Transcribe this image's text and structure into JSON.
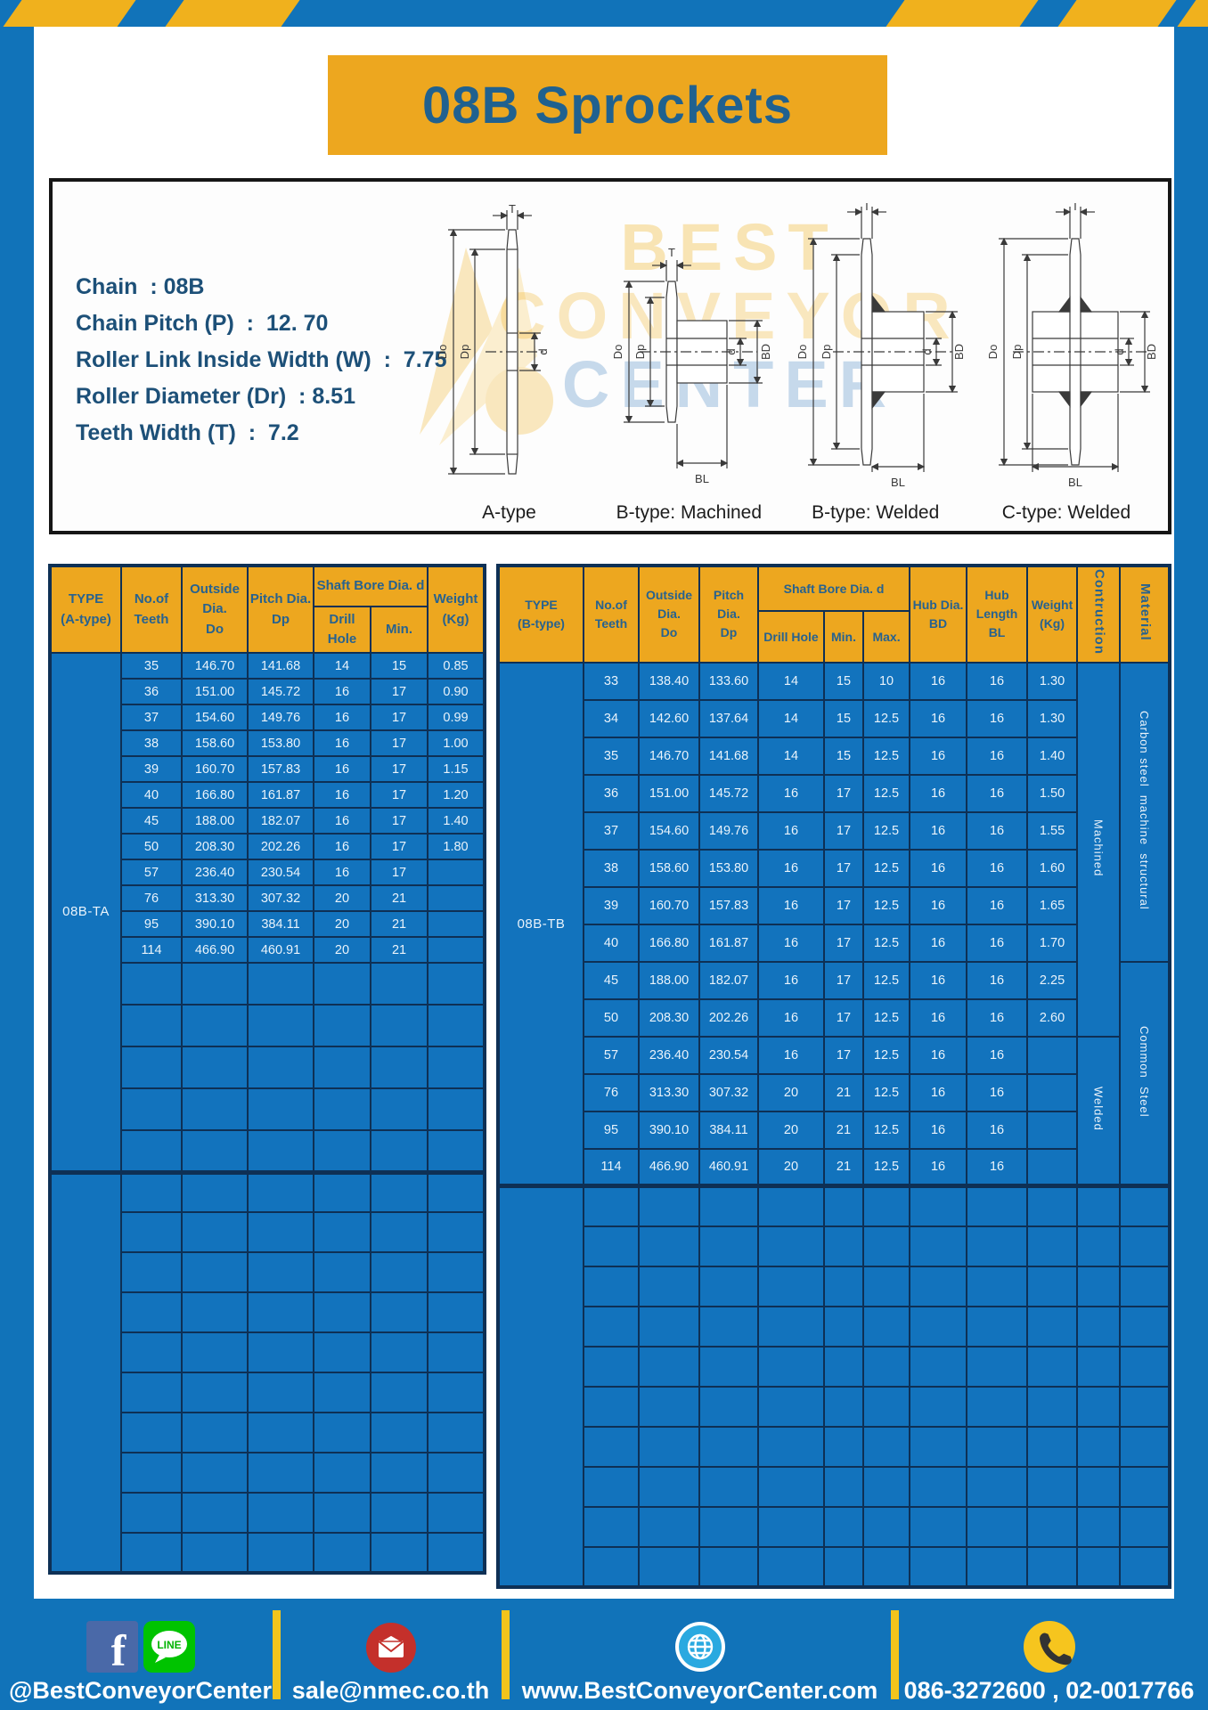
{
  "title": "08B Sprockets",
  "specs": {
    "lines": [
      "Chain  : 08B",
      "Chain Pitch (P)  :  12. 70",
      "Roller Link Inside Width (W)  :  7.75",
      "Roller Diameter (Dr)  : 8.51",
      "Teeth Width (T)  :  7.2"
    ]
  },
  "watermark": {
    "line1": "BEST",
    "line2": "CONVEYOR",
    "line3": "CENTER"
  },
  "diagrams": {
    "captions": [
      "A-type",
      "B-type: Machined",
      "B-type: Welded",
      "C-type: Welded"
    ],
    "dim_labels": {
      "t": "T",
      "do": "Do",
      "dp": "Dp",
      "d": "d",
      "bd": "BD",
      "bl": "BL"
    }
  },
  "table_a": {
    "headers": {
      "type": "TYPE\n(A-type)",
      "teeth": "No.of\nTeeth",
      "outside": "Outside\nDia.\nDo",
      "pitch": "Pitch Dia.\nDp",
      "shaft_bore": "Shaft Bore Dia. d",
      "drill_hole": "Drill Hole",
      "min": "Min.",
      "weight": "Weight\n(Kg)"
    },
    "type_label": "08B-TA",
    "rows": [
      [
        "35",
        "146.70",
        "141.68",
        "14",
        "15",
        "0.85"
      ],
      [
        "36",
        "151.00",
        "145.72",
        "16",
        "17",
        "0.90"
      ],
      [
        "37",
        "154.60",
        "149.76",
        "16",
        "17",
        "0.99"
      ],
      [
        "38",
        "158.60",
        "153.80",
        "16",
        "17",
        "1.00"
      ],
      [
        "39",
        "160.70",
        "157.83",
        "16",
        "17",
        "1.15"
      ],
      [
        "40",
        "166.80",
        "161.87",
        "16",
        "17",
        "1.20"
      ],
      [
        "45",
        "188.00",
        "182.07",
        "16",
        "17",
        "1.40"
      ],
      [
        "50",
        "208.30",
        "202.26",
        "16",
        "17",
        "1.80"
      ],
      [
        "57",
        "236.40",
        "230.54",
        "16",
        "17",
        ""
      ],
      [
        "76",
        "313.30",
        "307.32",
        "20",
        "21",
        ""
      ],
      [
        "95",
        "390.10",
        "384.11",
        "20",
        "21",
        ""
      ],
      [
        "114",
        "466.90",
        "460.91",
        "20",
        "21",
        ""
      ]
    ],
    "empty_rows_upper": 5,
    "empty_rows_lower": 10
  },
  "table_b": {
    "headers": {
      "type": "TYPE\n(B-type)",
      "teeth": "No.of\nTeeth",
      "outside": "Outside\nDia.\nDo",
      "pitch": "Pitch Dia.\nDp",
      "shaft_bore": "Shaft Bore Dia. d",
      "drill_hole": "Drill Hole",
      "min": "Min.",
      "max": "Max.",
      "hub_dia": "Hub Dia.\nBD",
      "hub_length": "Hub\nLength\nBL",
      "weight": "Weight\n(Kg)",
      "construction": "Contruction",
      "material": "Material"
    },
    "type_label": "08B-TB",
    "rows": [
      [
        "33",
        "138.40",
        "133.60",
        "14",
        "15",
        "10",
        "16",
        "16",
        "1.30"
      ],
      [
        "34",
        "142.60",
        "137.64",
        "14",
        "15",
        "12.5",
        "16",
        "16",
        "1.30"
      ],
      [
        "35",
        "146.70",
        "141.68",
        "14",
        "15",
        "12.5",
        "16",
        "16",
        "1.40"
      ],
      [
        "36",
        "151.00",
        "145.72",
        "16",
        "17",
        "12.5",
        "16",
        "16",
        "1.50"
      ],
      [
        "37",
        "154.60",
        "149.76",
        "16",
        "17",
        "12.5",
        "16",
        "16",
        "1.55"
      ],
      [
        "38",
        "158.60",
        "153.80",
        "16",
        "17",
        "12.5",
        "16",
        "16",
        "1.60"
      ],
      [
        "39",
        "160.70",
        "157.83",
        "16",
        "17",
        "12.5",
        "16",
        "16",
        "1.65"
      ],
      [
        "40",
        "166.80",
        "161.87",
        "16",
        "17",
        "12.5",
        "16",
        "16",
        "1.70"
      ],
      [
        "45",
        "188.00",
        "182.07",
        "16",
        "17",
        "12.5",
        "16",
        "16",
        "2.25"
      ],
      [
        "50",
        "208.30",
        "202.26",
        "16",
        "17",
        "12.5",
        "16",
        "16",
        "2.60"
      ],
      [
        "57",
        "236.40",
        "230.54",
        "16",
        "17",
        "12.5",
        "16",
        "16",
        ""
      ],
      [
        "76",
        "313.30",
        "307.32",
        "20",
        "21",
        "12.5",
        "16",
        "16",
        ""
      ],
      [
        "95",
        "390.10",
        "384.11",
        "20",
        "21",
        "12.5",
        "16",
        "16",
        ""
      ],
      [
        "114",
        "466.90",
        "460.91",
        "20",
        "21",
        "12.5",
        "16",
        "16",
        ""
      ]
    ],
    "construction_groups": [
      {
        "label": "Machined",
        "rows": 10
      },
      {
        "label": "Welded",
        "rows": 4
      }
    ],
    "material_groups": [
      {
        "label": "Carbon steel  machine  structural",
        "rows": 8
      },
      {
        "label": "Common  Steel",
        "rows": 6
      }
    ],
    "empty_rows_lower": 10
  },
  "footer": {
    "social_label": "@BestConveyorCenter",
    "line_badge": "LINE",
    "email": "sale@nmec.co.th",
    "website": "www.BestConveyorCenter.com",
    "phone": "086-3272600 , 02-0017766"
  },
  "colors": {
    "frame_blue": "#1173b9",
    "accent_yellow": "#eda71f",
    "cell_blue": "#1273bd",
    "border_navy": "#0e3055",
    "heading_blue": "#20618f",
    "divider_yellow": "#f2c41c"
  }
}
